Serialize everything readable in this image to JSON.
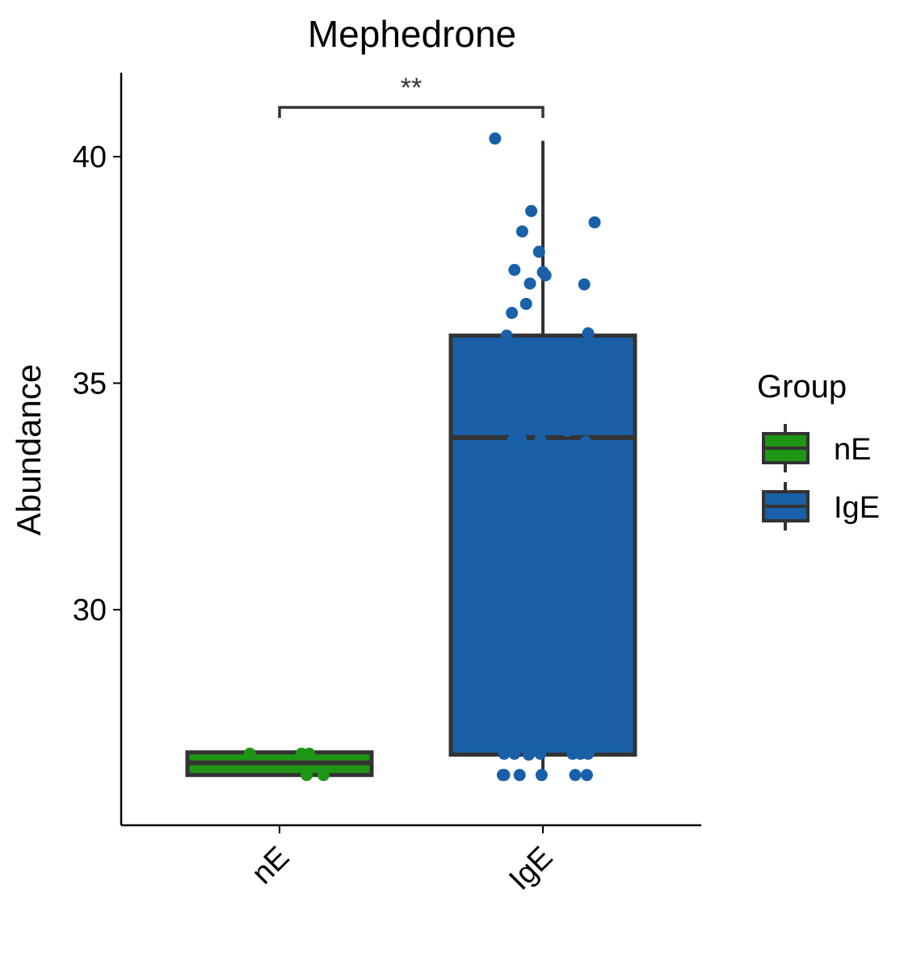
{
  "chart_data": {
    "type": "box",
    "title": "Mephedrone",
    "xlabel": "",
    "ylabel": "Abundance",
    "categories": [
      "nE",
      "IgE"
    ],
    "ylim": [
      25.2,
      41.8
    ],
    "yticks": [
      30,
      35,
      40
    ],
    "colors": {
      "nE": "#1f9516",
      "IgE": "#1960a8",
      "outline": "#333333"
    },
    "boxes": [
      {
        "group": "nE",
        "q1": 26.35,
        "median": 26.62,
        "q3": 26.85,
        "whisker_low": 26.35,
        "whisker_high": 26.85
      },
      {
        "group": "IgE",
        "q1": 26.8,
        "median": 33.8,
        "q3": 36.05,
        "whisker_low": 26.35,
        "whisker_high": 40.35
      }
    ],
    "points": [
      {
        "group": "nE",
        "values": [
          26.82,
          26.82,
          26.82,
          26.35,
          26.35
        ],
        "jitter": [
          -0.23,
          0.17,
          0.23,
          0.21,
          0.34
        ]
      },
      {
        "group": "IgE",
        "values": [
          40.4,
          38.8,
          38.35,
          37.9,
          37.5,
          37.45,
          37.38,
          37.2,
          37.18,
          36.75,
          36.55,
          36.1,
          36.05,
          33.95,
          33.75,
          33.75,
          33.7,
          33.75,
          33.7,
          32.9,
          26.82,
          26.82,
          26.8,
          26.82,
          26.82,
          26.82,
          26.82,
          26.35,
          26.35,
          26.35,
          26.35,
          26.35,
          26.35,
          38.55
        ],
        "jitter": [
          -0.37,
          -0.09,
          -0.16,
          -0.03,
          -0.22,
          -0.0,
          0.02,
          -0.1,
          0.32,
          -0.13,
          -0.24,
          0.35,
          -0.28,
          0.19,
          -0.23,
          -0.17,
          -0.02,
          -0.02,
          0.33,
          -0.35,
          -0.3,
          -0.22,
          -0.11,
          -0.02,
          0.23,
          0.29,
          0.35,
          -0.31,
          -0.3,
          -0.18,
          -0.01,
          0.25,
          0.34,
          0.4
        ]
      }
    ],
    "significance": {
      "pair": [
        "nE",
        "IgE"
      ],
      "label": "**"
    },
    "grid": false,
    "legend": {
      "title": "Group",
      "position": "right",
      "entries": [
        {
          "label": "nE",
          "color": "#1f9516"
        },
        {
          "label": "IgE",
          "color": "#1960a8"
        }
      ]
    }
  }
}
